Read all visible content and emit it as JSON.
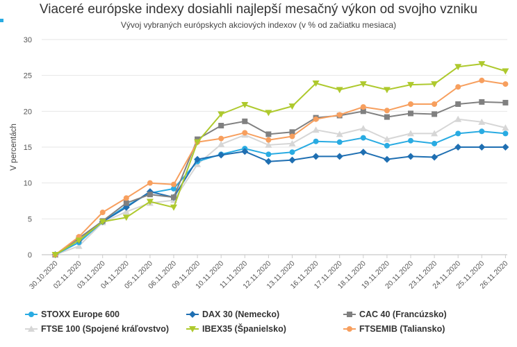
{
  "header": {
    "title": "Viaceré európske indexy dosiahli najlepší mesačný výkon od svojho vzniku",
    "subtitle": "Vývoj vybraných európskych akciových indexov (v % od začiatku mesiaca)"
  },
  "chart_data": {
    "type": "line",
    "title": "Viaceré európske indexy dosiahli najlepší mesačný výkon od svojho vzniku",
    "subtitle": "Vývoj vybraných európskych akciových indexov (v % od začiatku mesiaca)",
    "xlabel": "",
    "ylabel": "V percentách",
    "ylim": [
      0,
      30
    ],
    "yticks": [
      0,
      5,
      10,
      15,
      20,
      25,
      30
    ],
    "grid": true,
    "legend_position": "bottom",
    "x": [
      "30.10.2020",
      "02.11.2020",
      "03.11.2020",
      "04.11.2020",
      "05.11.2020",
      "06.11.2020",
      "09.11.2020",
      "10.11.2020",
      "11.11.2020",
      "12.11.2020",
      "13.11.2020",
      "16.11.2020",
      "17.11.2020",
      "18.11.2020",
      "19.11.2020",
      "20.11.2020",
      "23.11.2020",
      "24.11.2020",
      "25.11.2020",
      "26.11.2020"
    ],
    "series": [
      {
        "name": "STOXX Europe 600",
        "color": "#29abe2",
        "marker": "circle",
        "values": [
          0,
          1.7,
          4.6,
          6.8,
          8.6,
          9.2,
          13.0,
          14.0,
          14.8,
          14.0,
          14.3,
          15.8,
          15.7,
          16.3,
          15.2,
          15.9,
          15.5,
          16.9,
          17.2,
          16.9
        ]
      },
      {
        "name": "DAX 30 (Nemecko)",
        "color": "#1f6fb2",
        "marker": "diamond",
        "values": [
          0,
          2.0,
          4.6,
          6.6,
          8.8,
          8.0,
          13.3,
          13.9,
          14.4,
          13.0,
          13.2,
          13.7,
          13.7,
          14.3,
          13.3,
          13.7,
          13.6,
          15.0,
          15.0,
          15.0
        ]
      },
      {
        "name": "CAC 40 (Francúzsko)",
        "color": "#808080",
        "marker": "square",
        "values": [
          0,
          2.3,
          4.7,
          7.2,
          8.4,
          8.0,
          16.1,
          18.0,
          18.6,
          16.8,
          17.1,
          19.1,
          19.4,
          20.0,
          19.2,
          19.7,
          19.6,
          21.0,
          21.3,
          21.2
        ]
      },
      {
        "name": "FTSE 100 (Spojené kráľovstvo)",
        "color": "#d6d6d6",
        "marker": "triangle",
        "values": [
          0,
          1.2,
          4.5,
          6.0,
          7.2,
          7.6,
          12.6,
          15.4,
          16.7,
          15.3,
          15.5,
          17.4,
          16.8,
          17.6,
          16.1,
          16.9,
          16.9,
          18.9,
          18.5,
          17.7
        ]
      },
      {
        "name": "IBEX35 (Španielsko)",
        "color": "#aec92d",
        "marker": "triangle-down",
        "values": [
          0,
          2.0,
          4.6,
          5.2,
          7.4,
          6.6,
          15.7,
          19.6,
          20.9,
          19.8,
          20.7,
          23.9,
          23.0,
          23.8,
          23.0,
          23.7,
          23.8,
          26.2,
          26.6,
          25.6
        ]
      },
      {
        "name": "FTSEMIB (Taliansko)",
        "color": "#f79f5e",
        "marker": "circle",
        "values": [
          0,
          2.5,
          5.9,
          7.9,
          10.0,
          9.8,
          15.7,
          16.2,
          17.0,
          16.0,
          16.5,
          18.9,
          19.5,
          20.6,
          20.1,
          21.0,
          21.0,
          23.4,
          24.3,
          23.8
        ]
      }
    ]
  }
}
